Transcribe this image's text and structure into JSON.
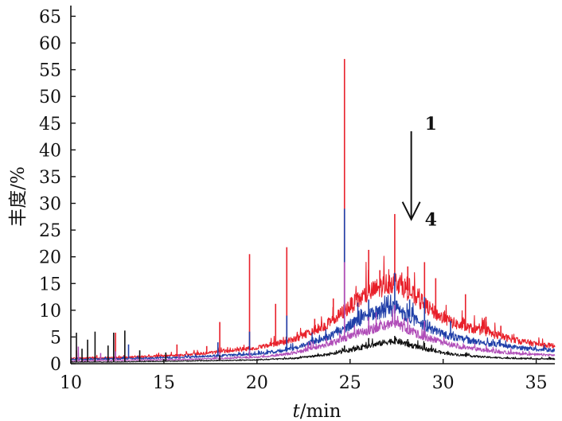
{
  "chart_data": {
    "type": "line",
    "title": "",
    "xlabel": "t/min",
    "ylabel": "丰度/%",
    "xlim": [
      10,
      36
    ],
    "ylim": [
      0,
      67
    ],
    "xticks": [
      10,
      15,
      20,
      25,
      30,
      35
    ],
    "yticks": [
      0,
      5,
      10,
      15,
      20,
      25,
      30,
      35,
      40,
      45,
      50,
      55,
      60,
      65
    ],
    "grid": false,
    "legend": "none",
    "annotations": [
      {
        "text": "1",
        "x": 28.8,
        "y": 45
      },
      {
        "text": "4",
        "x": 28.8,
        "y": 27
      }
    ],
    "arrow": {
      "from": [
        28.8,
        43.5
      ],
      "to": [
        28.8,
        27
      ]
    },
    "series": [
      {
        "color": "#e8202a",
        "baseline": [
          [
            10,
            1.0
          ],
          [
            12,
            1.1
          ],
          [
            14,
            1.3
          ],
          [
            16,
            1.6
          ],
          [
            18,
            2.2
          ],
          [
            20,
            3.0
          ],
          [
            22,
            4.5
          ],
          [
            24,
            7.8
          ],
          [
            25,
            10.8
          ],
          [
            26,
            13.2
          ],
          [
            27,
            15.0
          ],
          [
            27.5,
            15.5
          ],
          [
            28,
            14.0
          ],
          [
            29,
            11.0
          ],
          [
            30,
            8.4
          ],
          [
            31,
            7.0
          ],
          [
            32,
            6.2
          ],
          [
            33,
            5.2
          ],
          [
            34,
            4.3
          ],
          [
            35,
            3.7
          ],
          [
            36,
            3.3
          ]
        ],
        "peaks": [
          [
            10.3,
            2.5
          ],
          [
            12.4,
            5.8
          ],
          [
            15.7,
            3.6
          ],
          [
            17.3,
            3.3
          ],
          [
            18.0,
            7.8
          ],
          [
            19.6,
            20.5
          ],
          [
            21.0,
            11.2
          ],
          [
            21.6,
            21.8
          ],
          [
            23.1,
            8.4
          ],
          [
            24.1,
            12.2
          ],
          [
            24.7,
            57.0
          ],
          [
            26.0,
            21.3
          ],
          [
            26.6,
            17.5
          ],
          [
            27.4,
            28.0
          ],
          [
            28.1,
            18.2
          ],
          [
            29.0,
            19.0
          ],
          [
            29.6,
            16.0
          ],
          [
            31.2,
            13.0
          ],
          [
            32.3,
            8.8
          ],
          [
            33.1,
            7.1
          ]
        ]
      },
      {
        "color": "#1f3ea8",
        "baseline": [
          [
            10,
            0.8
          ],
          [
            12,
            0.9
          ],
          [
            14,
            1.0
          ],
          [
            16,
            1.2
          ],
          [
            18,
            1.5
          ],
          [
            20,
            1.8
          ],
          [
            22,
            2.8
          ],
          [
            24,
            5.3
          ],
          [
            25,
            7.3
          ],
          [
            26,
            9.0
          ],
          [
            27,
            10.1
          ],
          [
            27.5,
            10.4
          ],
          [
            28,
            9.2
          ],
          [
            29,
            7.1
          ],
          [
            30,
            5.5
          ],
          [
            31,
            4.6
          ],
          [
            32,
            4.0
          ],
          [
            33,
            3.5
          ],
          [
            34,
            3.0
          ],
          [
            35,
            2.7
          ],
          [
            36,
            2.5
          ]
        ],
        "peaks": [
          [
            10.4,
            2.0
          ],
          [
            12.3,
            4.5
          ],
          [
            13.1,
            3.6
          ],
          [
            17.9,
            4.0
          ],
          [
            19.6,
            6.0
          ],
          [
            21.6,
            9.0
          ],
          [
            24.7,
            29.0
          ],
          [
            26.0,
            12.0
          ],
          [
            26.7,
            11.5
          ],
          [
            27.4,
            17.0
          ],
          [
            28.2,
            12.0
          ],
          [
            29.0,
            12.5
          ],
          [
            30.4,
            8.0
          ]
        ]
      },
      {
        "color": "#b04db8",
        "baseline": [
          [
            10,
            0.5
          ],
          [
            12,
            0.6
          ],
          [
            14,
            0.7
          ],
          [
            16,
            0.8
          ],
          [
            18,
            1.0
          ],
          [
            20,
            1.2
          ],
          [
            22,
            2.0
          ],
          [
            24,
            3.8
          ],
          [
            25,
            5.0
          ],
          [
            26,
            6.3
          ],
          [
            27,
            7.2
          ],
          [
            27.5,
            7.4
          ],
          [
            28,
            6.6
          ],
          [
            29,
            5.0
          ],
          [
            30,
            3.9
          ],
          [
            31,
            3.1
          ],
          [
            32,
            2.6
          ],
          [
            33,
            2.2
          ],
          [
            34,
            1.9
          ],
          [
            35,
            1.7
          ],
          [
            36,
            1.6
          ]
        ],
        "peaks": [
          [
            10.4,
            3.2
          ],
          [
            11.6,
            2.0
          ],
          [
            12.4,
            2.3
          ],
          [
            15.8,
            1.8
          ],
          [
            18.0,
            2.2
          ],
          [
            19.6,
            2.5
          ],
          [
            24.7,
            19.0
          ],
          [
            26.0,
            8.7
          ],
          [
            27.4,
            11.0
          ],
          [
            28.1,
            8.5
          ],
          [
            29.0,
            8.0
          ]
        ]
      },
      {
        "color": "#111111",
        "baseline": [
          [
            10,
            0.3
          ],
          [
            12,
            0.3
          ],
          [
            14,
            0.4
          ],
          [
            16,
            0.5
          ],
          [
            18,
            0.6
          ],
          [
            20,
            0.7
          ],
          [
            22,
            1.0
          ],
          [
            24,
            1.8
          ],
          [
            25,
            2.5
          ],
          [
            26,
            3.3
          ],
          [
            27,
            4.1
          ],
          [
            27.5,
            4.3
          ],
          [
            28,
            3.7
          ],
          [
            29,
            2.8
          ],
          [
            30,
            2.0
          ],
          [
            31,
            1.6
          ],
          [
            32,
            1.3
          ],
          [
            33,
            1.1
          ],
          [
            34,
            1.0
          ],
          [
            35,
            0.9
          ],
          [
            36,
            0.9
          ]
        ],
        "peaks": [
          [
            10.3,
            5.8
          ],
          [
            10.6,
            2.8
          ],
          [
            10.9,
            4.5
          ],
          [
            11.3,
            6.0
          ],
          [
            12.0,
            3.4
          ],
          [
            12.3,
            5.8
          ],
          [
            12.9,
            6.2
          ],
          [
            13.7,
            2.5
          ],
          [
            15.1,
            2.1
          ],
          [
            18.0,
            1.6
          ],
          [
            24.7,
            3.4
          ],
          [
            26.0,
            4.8
          ],
          [
            27.4,
            5.2
          ],
          [
            28.1,
            4.6
          ],
          [
            29.0,
            3.9
          ]
        ]
      }
    ]
  }
}
